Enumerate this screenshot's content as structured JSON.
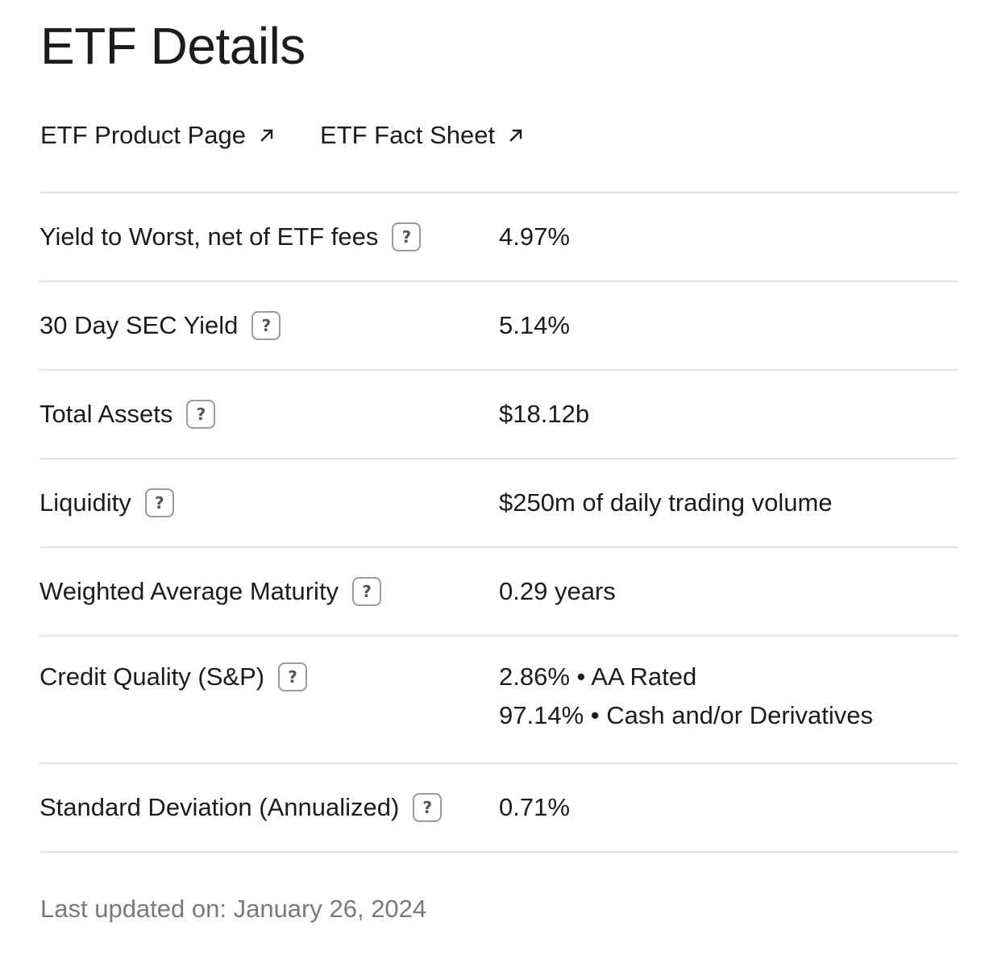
{
  "page": {
    "title": "ETF Details"
  },
  "links": [
    {
      "label": "ETF Product Page",
      "icon": "external-link-arrow-icon"
    },
    {
      "label": "ETF Fact Sheet",
      "icon": "external-link-arrow-icon"
    }
  ],
  "help_icon_glyph": "?",
  "rows": [
    {
      "label": "Yield to Worst, net of ETF fees",
      "value": "4.97%"
    },
    {
      "label": "30 Day SEC Yield",
      "value": "5.14%"
    },
    {
      "label": "Total Assets",
      "value": "$18.12b"
    },
    {
      "label": "Liquidity",
      "value": "$250m of daily trading volume"
    },
    {
      "label": "Weighted Average Maturity",
      "value": "0.29 years"
    },
    {
      "label": "Credit Quality (S&P)",
      "values": [
        "2.86% • AA Rated",
        "97.14% • Cash and/or Derivatives"
      ]
    },
    {
      "label": "Standard Deviation (Annualized)",
      "value": "0.71%"
    }
  ],
  "footer": {
    "last_updated": "Last updated on: January 26, 2024"
  },
  "colors": {
    "text": "#1c1c1c",
    "muted": "#7a7a7a",
    "divider": "#e4e4e4",
    "help_border": "#9a9a9a"
  }
}
